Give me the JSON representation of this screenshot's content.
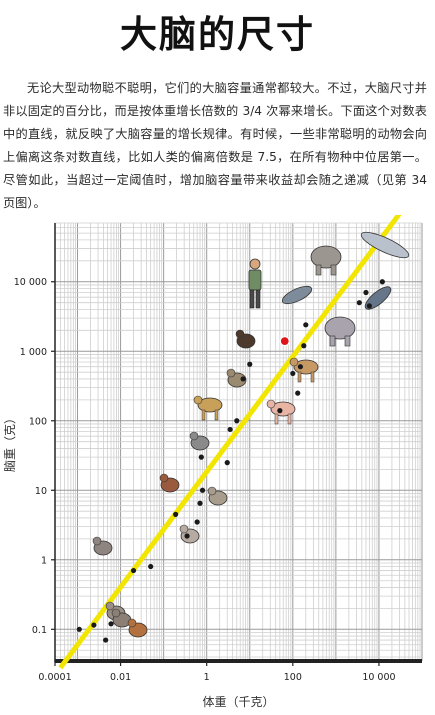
{
  "page": {
    "title": "大脑的尺寸",
    "paragraph": "无论大型动物聪不聪明，它们的大脑容量通常都较大。不过，大脑尺寸并非以固定的百分比，而是按体重增长倍数的 3/4 次幂来增长。下面这个对数表中的直线，就反映了大脑容量的增长规律。有时候，一些非常聪明的动物会向上偏离这条对数直线，比如人类的偏离倍数是 7.5，在所有物种中位居第一。尽管如此，当超过一定阈值时，增加脑容量带来收益却会随之递减（见第 34 页图）。"
  },
  "chart_data": {
    "type": "scatter",
    "title": "",
    "xlabel": "体重（千克）",
    "ylabel": "脑重（克）",
    "xscale": "log",
    "yscale": "log",
    "xlim": [
      0.0003,
      100000
    ],
    "ylim": [
      0.035,
      70000
    ],
    "x_ticks": [
      0.0001,
      0.01,
      1,
      100,
      10000
    ],
    "x_tick_labels": [
      "0.0001",
      "0.01",
      "1",
      "100",
      "10 000"
    ],
    "y_ticks": [
      0.1,
      1,
      10,
      100,
      1000,
      10000
    ],
    "y_tick_labels": [
      "0.1",
      "1",
      "10",
      "100",
      "1 000",
      "10 000"
    ],
    "grid": true,
    "trend_line": {
      "color": "#f2e500",
      "slope": 0.75,
      "points": [
        [
          0.0004,
          0.028
        ],
        [
          30000,
          95000
        ]
      ]
    },
    "highlight": {
      "name": "human",
      "x": 65,
      "y": 1400,
      "color": "#e0141b"
    },
    "points": [
      {
        "x": 0.0011,
        "y": 0.1
      },
      {
        "x": 0.0024,
        "y": 0.115
      },
      {
        "x": 0.0045,
        "y": 0.07
      },
      {
        "x": 0.006,
        "y": 0.12
      },
      {
        "x": 0.02,
        "y": 0.7
      },
      {
        "x": 0.05,
        "y": 0.8
      },
      {
        "x": 0.19,
        "y": 4.5
      },
      {
        "x": 0.35,
        "y": 2.2
      },
      {
        "x": 0.6,
        "y": 3.5
      },
      {
        "x": 0.7,
        "y": 6.5
      },
      {
        "x": 0.8,
        "y": 10
      },
      {
        "x": 0.75,
        "y": 30
      },
      {
        "x": 3,
        "y": 25
      },
      {
        "x": 3.5,
        "y": 75
      },
      {
        "x": 5,
        "y": 100
      },
      {
        "x": 7,
        "y": 400
      },
      {
        "x": 10,
        "y": 650
      },
      {
        "x": 50,
        "y": 140
      },
      {
        "x": 130,
        "y": 250
      },
      {
        "x": 100,
        "y": 480
      },
      {
        "x": 150,
        "y": 600
      },
      {
        "x": 180,
        "y": 1200
      },
      {
        "x": 200,
        "y": 2400
      },
      {
        "x": 3500,
        "y": 5000
      },
      {
        "x": 6000,
        "y": 4500
      },
      {
        "x": 5000,
        "y": 7000
      },
      {
        "x": 12000,
        "y": 10000
      }
    ],
    "icons": [
      "mouse-icon",
      "shrew-icon",
      "bat-icon",
      "rat-icon",
      "squirrel-icon",
      "hedgehog-icon",
      "gerbil-icon",
      "cat-icon",
      "dog-icon",
      "monkey-icon",
      "chimpanzee-icon",
      "human-icon",
      "dolphin-icon",
      "pig-icon",
      "horse-icon",
      "hippo-icon",
      "elephant-icon",
      "killer-whale-icon",
      "blue-whale-icon"
    ]
  }
}
